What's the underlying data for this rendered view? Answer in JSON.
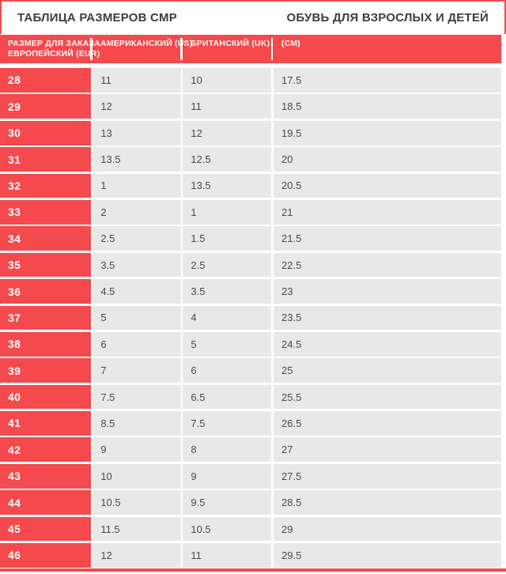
{
  "chart_data": {
    "type": "table",
    "title": "ТАБЛИЦА РАЗМЕРОВ CMP",
    "subtitle": "ОБУВЬ ДЛЯ ВЗРОСЛЫХ И ДЕТЕЙ",
    "columns": [
      "РАЗМЕР ДЛЯ ЗАКАЗА ЕВРОПЕЙСКИЙ (EUR)",
      "АМЕРИКАНСКИЙ (US)",
      "БРИТАНСКИЙ (UK)",
      "(СМ)"
    ],
    "rows": [
      [
        "28",
        "11",
        "10",
        "17.5"
      ],
      [
        "29",
        "12",
        "11",
        "18.5"
      ],
      [
        "30",
        "13",
        "12",
        "19.5"
      ],
      [
        "31",
        "13.5",
        "12.5",
        "20"
      ],
      [
        "32",
        "1",
        "13.5",
        "20.5"
      ],
      [
        "33",
        "2",
        "1",
        "21"
      ],
      [
        "34",
        "2.5",
        "1.5",
        "21.5"
      ],
      [
        "35",
        "3.5",
        "2.5",
        "22.5"
      ],
      [
        "36",
        "4.5",
        "3.5",
        "23"
      ],
      [
        "37",
        "5",
        "4",
        "23.5"
      ],
      [
        "38",
        "6",
        "5",
        "24.5"
      ],
      [
        "39",
        "7",
        "6",
        "25"
      ],
      [
        "40",
        "7.5",
        "6.5",
        "25.5"
      ],
      [
        "41",
        "8.5",
        "7.5",
        "26.5"
      ],
      [
        "42",
        "9",
        "8",
        "27"
      ],
      [
        "43",
        "10",
        "9",
        "27.5"
      ],
      [
        "44",
        "10.5",
        "9.5",
        "28.5"
      ],
      [
        "45",
        "11.5",
        "10.5",
        "29"
      ],
      [
        "46",
        "12",
        "11",
        "29.5"
      ]
    ]
  },
  "table_headers": {
    "eur_line1": "РАЗМЕР ДЛЯ ЗАКАЗА",
    "eur_line2": "ЕВРОПЕЙСКИЙ (EUR)",
    "us": "АМЕРИКАНСКИЙ (US)",
    "uk": "БРИТАНСКИЙ (UK)",
    "cm": "(СМ)"
  },
  "colors": {
    "accent_red": "#F4494D",
    "cell_gray": "#E8E8E8",
    "text_dark": "#3E3E3D",
    "value_text": "#4A4A48",
    "header_text": "#FFFFFF"
  }
}
